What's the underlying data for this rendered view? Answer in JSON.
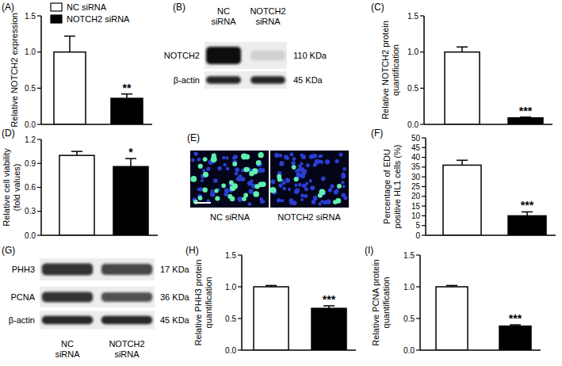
{
  "chart_data": [
    {
      "type": "bar",
      "title": "(A)",
      "ylabel": [
        "Relative NOTCH2 expression"
      ],
      "categories": [
        null
      ],
      "series": [
        {
          "name": "NC siRNA",
          "color": "#ffffff",
          "values": [
            1.0
          ],
          "errors": [
            0.22
          ]
        },
        {
          "name": "NOTCH2 siRNA",
          "color": "#000000",
          "values": [
            0.36
          ],
          "errors": [
            0.06
          ]
        }
      ],
      "annotations": [
        "**"
      ],
      "ylim": [
        0,
        1.5
      ],
      "yticks": [
        {
          "value": 0,
          "label": "0.0"
        },
        0.5,
        {
          "value": 1,
          "label": "1.0"
        },
        1.5
      ],
      "legend": "top-left",
      "tick_labels": "y"
    },
    {
      "type": "bar",
      "title": "(C)",
      "ylabel": [
        "Relative NOTCH2 protein",
        "quantification"
      ],
      "categories": [
        null
      ],
      "series": [
        {
          "color": "#ffffff",
          "values": [
            1.0
          ],
          "errors": [
            0.07
          ]
        },
        {
          "color": "#000000",
          "values": [
            0.09
          ],
          "errors": [
            0.01
          ]
        }
      ],
      "annotations": [
        "***"
      ],
      "ylim": [
        0,
        1.5
      ],
      "yticks": [
        {
          "value": 0,
          "label": "0.0"
        },
        0.5,
        {
          "value": 1,
          "label": "1.0"
        },
        1.5
      ],
      "tick_labels": "y"
    },
    {
      "type": "bar",
      "title": "(D)",
      "ylabel": [
        "Relative cell viability",
        "(fold values)"
      ],
      "categories": [
        null
      ],
      "series": [
        {
          "color": "#ffffff",
          "values": [
            1.0
          ],
          "errors": [
            0.05
          ]
        },
        {
          "color": "#000000",
          "values": [
            0.86
          ],
          "errors": [
            0.1
          ]
        }
      ],
      "annotations": [
        "*"
      ],
      "ylim": [
        0,
        1.2
      ],
      "yticks": [
        {
          "value": 0,
          "label": "0.0"
        },
        0.3,
        0.6,
        0.9,
        1.2
      ],
      "tick_labels": "y"
    },
    {
      "type": "bar",
      "title": "(F)",
      "ylabel": [
        "Percentage of EDU",
        "positive HL1 cells (%)"
      ],
      "categories": [
        null
      ],
      "series": [
        {
          "color": "#ffffff",
          "values": [
            36
          ],
          "errors": [
            2.5
          ]
        },
        {
          "color": "#000000",
          "values": [
            10
          ],
          "errors": [
            2
          ]
        }
      ],
      "annotations": [
        "***"
      ],
      "ylim": [
        0,
        50
      ],
      "yticks": [
        0,
        5,
        10,
        15,
        20,
        25,
        30,
        35,
        40,
        45,
        50
      ],
      "tick_labels": "y"
    },
    {
      "type": "bar",
      "title": "(H)",
      "ylabel": [
        "Relative PHH3 protein",
        "quantification"
      ],
      "categories": [
        null
      ],
      "series": [
        {
          "color": "#ffffff",
          "values": [
            1.0
          ],
          "errors": [
            0.02
          ]
        },
        {
          "color": "#000000",
          "values": [
            0.66
          ],
          "errors": [
            0.04
          ]
        }
      ],
      "annotations": [
        "***"
      ],
      "ylim": [
        0,
        1.5
      ],
      "yticks": [
        {
          "value": 0,
          "label": "0.0"
        },
        0.5,
        {
          "value": 1,
          "label": "1.0"
        },
        1.5
      ],
      "tick_labels": "y"
    },
    {
      "type": "bar",
      "title": "(I)",
      "ylabel": [
        "Relative PCNA protein",
        "quantification"
      ],
      "categories": [
        null
      ],
      "series": [
        {
          "color": "#ffffff",
          "values": [
            1.0
          ],
          "errors": [
            0.02
          ]
        },
        {
          "color": "#000000",
          "values": [
            0.38
          ],
          "errors": [
            0.02
          ]
        }
      ],
      "annotations": [
        "***"
      ],
      "ylim": [
        0,
        1.5
      ],
      "yticks": [
        {
          "value": 0,
          "label": "0.0"
        },
        0.5,
        {
          "value": 1,
          "label": "1.0"
        },
        1.5
      ],
      "tick_labels": "y"
    }
  ],
  "blots": [
    {
      "title": "(B)",
      "lanes": [
        [
          "NC",
          "siRNA"
        ],
        [
          "NOTCH2",
          "siRNA"
        ]
      ],
      "rows": [
        {
          "label": "NOTCH2",
          "size": "110 KDa"
        },
        {
          "label": "β-actin",
          "size": "45 KDa"
        }
      ]
    },
    {
      "title": "(G)",
      "lanes": [
        [
          "NC",
          "siRNA"
        ],
        [
          "NOTCH2",
          "siRNA"
        ]
      ],
      "rows": [
        {
          "label": "PHH3",
          "size": "17 KDa"
        },
        {
          "label": "PCNA",
          "size": "36 KDa"
        },
        {
          "label": "β-actin",
          "size": "45 KDa"
        }
      ]
    }
  ],
  "micrograph": {
    "title": "(E)",
    "labels": [
      "NC siRNA",
      "NOTCH2 siRNA"
    ]
  }
}
